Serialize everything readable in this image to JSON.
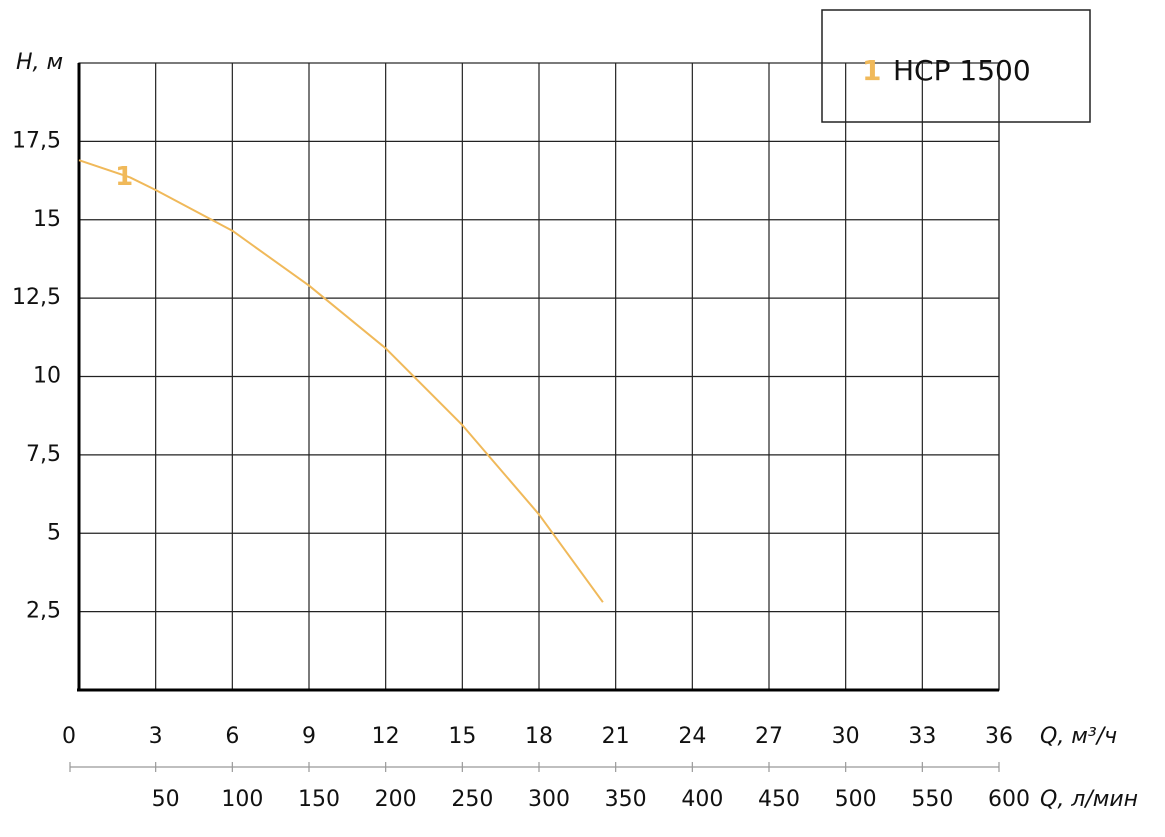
{
  "chart_data": {
    "type": "line",
    "x_label": "Q, м³/ч",
    "y_label": "H, м",
    "x2_label": "Q, л/мин",
    "x": [
      0,
      2,
      3,
      6,
      9,
      12,
      15,
      18,
      20.5
    ],
    "series": [
      {
        "name": "HCP 1500",
        "label": "1",
        "color": "#f0b95a",
        "values": [
          16.9,
          16.35,
          15.95,
          14.65,
          12.9,
          10.9,
          8.45,
          5.6,
          2.8
        ]
      }
    ],
    "xlim": [
      0,
      36
    ],
    "xticks": [
      0,
      3,
      6,
      9,
      12,
      15,
      18,
      21,
      24,
      27,
      30,
      33,
      36
    ],
    "x2lim": [
      0,
      600
    ],
    "x2ticks": [
      50,
      100,
      150,
      200,
      250,
      300,
      350,
      400,
      450,
      500,
      550,
      600
    ],
    "ylim": [
      0,
      20
    ],
    "yticks": [
      {
        "value": 2.5,
        "label": "2,5"
      },
      5,
      {
        "value": 7.5,
        "label": "7,5"
      },
      10,
      {
        "value": 12.5,
        "label": "12,5"
      },
      15,
      {
        "value": 17.5,
        "label": "17,5"
      }
    ],
    "grid": true
  }
}
